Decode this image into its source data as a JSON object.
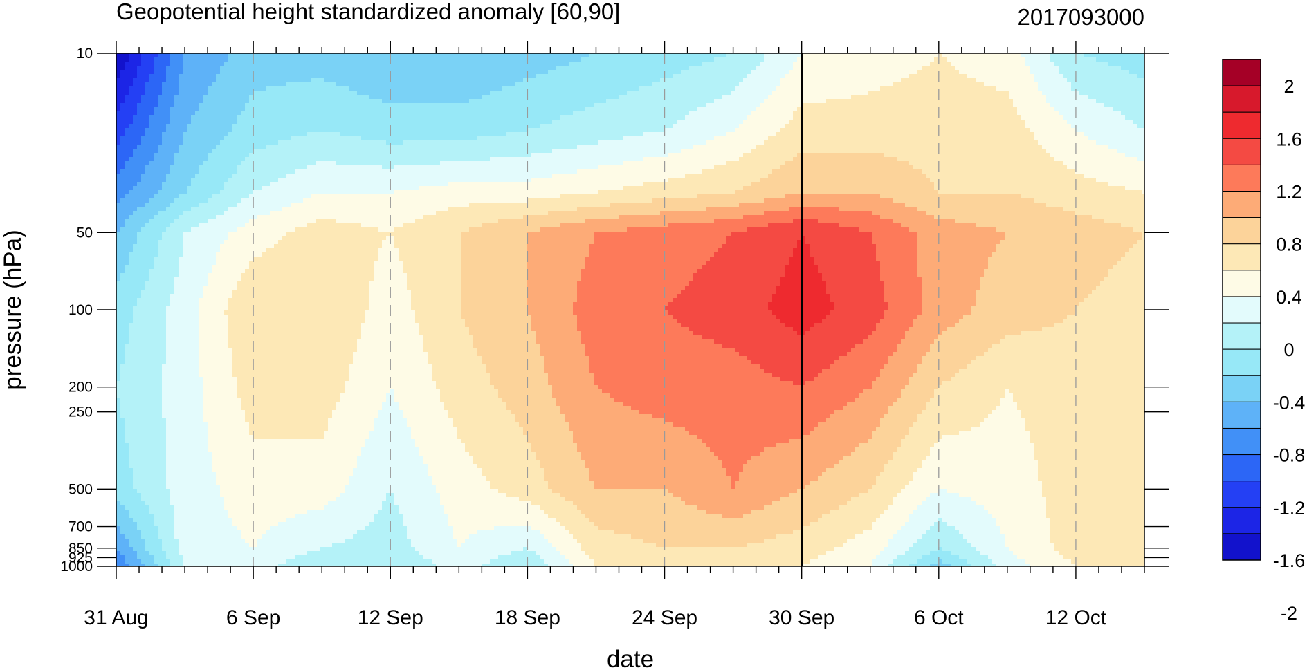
{
  "chart_data": {
    "type": "heatmap",
    "title": "Geopotential height standardized anomaly [60,90]",
    "run_label": "2017093000",
    "xlabel": "date",
    "ylabel": "pressure (hPa)",
    "x_tick_labels": [
      "31 Aug",
      "6 Sep",
      "12 Sep",
      "18 Sep",
      "24 Sep",
      "30 Sep",
      "6 Oct",
      "12 Oct"
    ],
    "x_range_days": [
      0,
      45
    ],
    "y_scale": "log",
    "ylim": [
      1000,
      10
    ],
    "y_ticks": [
      10,
      50,
      100,
      200,
      250,
      500,
      700,
      850,
      925,
      1000
    ],
    "reference_date": "30 Sep",
    "colorbar": {
      "levels": [
        -2,
        -1.8,
        -1.6,
        -1.4,
        -1.2,
        -1.0,
        -0.8,
        -0.6,
        -0.4,
        -0.2,
        0,
        0.2,
        0.4,
        0.6,
        0.8,
        1.0,
        1.2,
        1.4,
        1.6,
        1.8,
        2
      ],
      "tick_labels": [
        "2",
        "1.6",
        "1.2",
        "0.8",
        "0.4",
        "0",
        "-0.4",
        "-0.8",
        "-1.2",
        "-1.6",
        "-2"
      ],
      "colors_top_to_bottom": [
        "#a50026",
        "#d7192c",
        "#ee2a2f",
        "#f44a43",
        "#fd7a5a",
        "#fdab77",
        "#fcd39a",
        "#fde8b6",
        "#fefbe6",
        "#e3fbfc",
        "#b4f2f8",
        "#97e8f7",
        "#7ad2f6",
        "#5eb2f8",
        "#4190f7",
        "#2c66f6",
        "#2440f4",
        "#1c25e6",
        "#1212cc"
      ]
    },
    "dates": [
      "31 Aug",
      "3 Sep",
      "6 Sep",
      "9 Sep",
      "12 Sep",
      "15 Sep",
      "18 Sep",
      "21 Sep",
      "24 Sep",
      "27 Sep",
      "30 Sep",
      "3 Oct",
      "6 Oct",
      "9 Oct",
      "12 Oct",
      "15 Oct"
    ],
    "levels_hpa": [
      10,
      20,
      35,
      50,
      100,
      200,
      500,
      850,
      1000
    ],
    "anomaly_rows": [
      [
        -1.8,
        -0.8,
        -0.5,
        -0.5,
        -0.6,
        -0.6,
        -0.5,
        -0.4,
        -0.3,
        -0.2,
        0.2,
        0.3,
        0.4,
        0.3,
        -0.2,
        -0.3
      ],
      [
        -1.3,
        -0.6,
        -0.3,
        -0.2,
        -0.3,
        -0.3,
        -0.2,
        -0.1,
        0.0,
        0.2,
        0.5,
        0.5,
        0.5,
        0.5,
        0.2,
        0.0
      ],
      [
        -0.9,
        -0.4,
        0.0,
        0.2,
        0.2,
        0.3,
        0.3,
        0.4,
        0.5,
        0.6,
        0.8,
        0.8,
        0.6,
        0.6,
        0.5,
        0.4
      ],
      [
        -0.6,
        0.0,
        0.3,
        0.5,
        0.4,
        0.6,
        0.8,
        1.0,
        1.1,
        1.2,
        1.4,
        1.2,
        0.9,
        0.8,
        0.7,
        0.6
      ],
      [
        -0.3,
        0.1,
        0.6,
        0.6,
        0.3,
        0.6,
        0.8,
        1.1,
        1.2,
        1.3,
        1.5,
        1.3,
        0.9,
        0.7,
        0.6,
        0.5
      ],
      [
        -0.2,
        0.1,
        0.5,
        0.5,
        0.2,
        0.5,
        0.7,
        1.0,
        1.1,
        1.1,
        1.2,
        1.0,
        0.6,
        0.4,
        0.5,
        0.4
      ],
      [
        -0.3,
        0.1,
        0.3,
        0.3,
        0.0,
        0.3,
        0.5,
        0.8,
        0.8,
        1.0,
        0.8,
        0.6,
        0.2,
        0.3,
        0.5,
        0.5
      ],
      [
        -0.8,
        0.1,
        0.2,
        0.0,
        -0.1,
        0.2,
        0.0,
        0.5,
        0.6,
        0.6,
        0.5,
        0.3,
        -0.2,
        0.2,
        0.5,
        0.6
      ],
      [
        -1.0,
        0.0,
        0.1,
        -0.2,
        -0.2,
        0.1,
        -0.2,
        0.4,
        0.5,
        0.5,
        0.4,
        0.2,
        -0.5,
        0.1,
        0.4,
        0.5
      ]
    ]
  }
}
